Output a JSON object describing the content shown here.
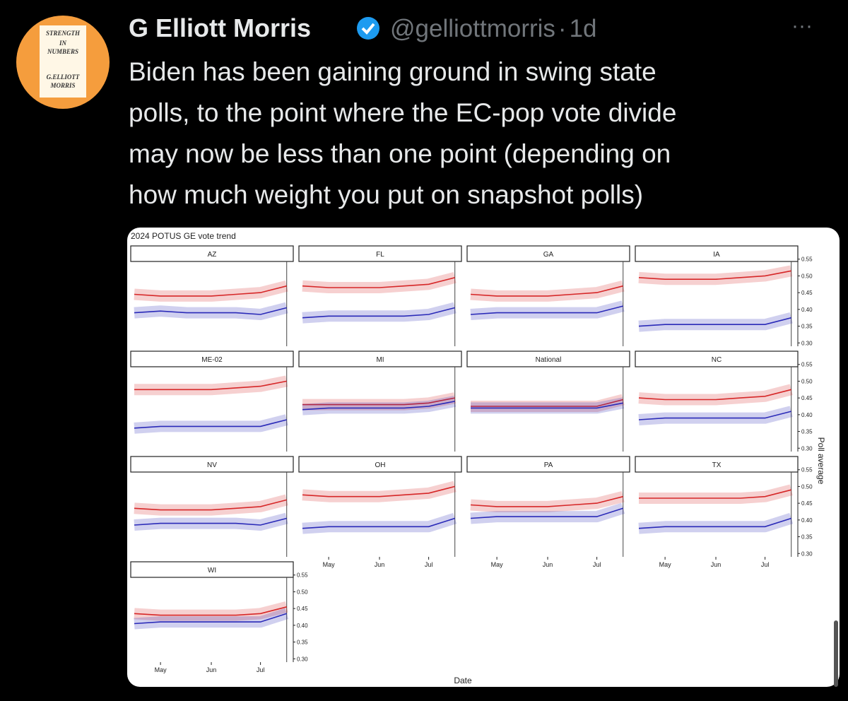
{
  "tweet": {
    "name": "G Elliott Morris",
    "handle": "@gelliottmorris",
    "separator": "·",
    "time": "1d",
    "more": "···",
    "avatar": [
      "STRENGTH",
      "IN",
      "NUMBERS",
      "G.ELLIOTT",
      "MORRIS"
    ],
    "text": [
      "Biden has been gaining ground in swing state",
      "polls, to the point where the EC-pop vote divide",
      "may now be less than one point (depending on",
      "how much weight you put on snapshot polls)"
    ]
  },
  "chart_data": {
    "type": "line",
    "title": "2024 POTUS GE vote trend",
    "xlabel": "Date",
    "ylabel": "Poll average",
    "grid": false,
    "x": [
      106,
      122,
      138,
      153,
      168,
      183,
      199
    ],
    "xlim": [
      106,
      203
    ],
    "xticks": [
      {
        "value": 122,
        "label": "May"
      },
      {
        "value": 153,
        "label": "Jun"
      },
      {
        "value": 183,
        "label": "Jul"
      }
    ],
    "ylim": [
      0.29,
      0.56
    ],
    "yticks": [
      {
        "value": 0.3,
        "label": "0.30"
      },
      0.35,
      {
        "value": 0.4,
        "label": "0.40"
      },
      0.45,
      {
        "value": 0.5,
        "label": "0.50"
      },
      0.55
    ],
    "panels": [
      {
        "name": "AZ",
        "series": [
          {
            "color": "#d62728",
            "values": [
              0.445,
              0.44,
              0.44,
              0.44,
              0.445,
              0.45,
              0.47
            ]
          },
          {
            "color": "#2a2ab8",
            "values": [
              0.39,
              0.395,
              0.39,
              0.39,
              0.39,
              0.385,
              0.405
            ]
          }
        ]
      },
      {
        "name": "FL",
        "series": [
          {
            "color": "#d62728",
            "values": [
              0.47,
              0.465,
              0.465,
              0.465,
              0.47,
              0.475,
              0.495
            ]
          },
          {
            "color": "#2a2ab8",
            "values": [
              0.375,
              0.38,
              0.38,
              0.38,
              0.38,
              0.385,
              0.405
            ]
          }
        ]
      },
      {
        "name": "GA",
        "series": [
          {
            "color": "#d62728",
            "values": [
              0.445,
              0.44,
              0.44,
              0.44,
              0.445,
              0.45,
              0.47
            ]
          },
          {
            "color": "#2a2ab8",
            "values": [
              0.385,
              0.39,
              0.39,
              0.39,
              0.39,
              0.39,
              0.41
            ]
          }
        ]
      },
      {
        "name": "IA",
        "series": [
          {
            "color": "#d62728",
            "values": [
              0.495,
              0.49,
              0.49,
              0.49,
              0.495,
              0.5,
              0.515
            ]
          },
          {
            "color": "#2a2ab8",
            "values": [
              0.35,
              0.355,
              0.355,
              0.355,
              0.355,
              0.355,
              0.375
            ]
          }
        ]
      },
      {
        "name": "ME-02",
        "series": [
          {
            "color": "#d62728",
            "values": [
              0.475,
              0.475,
              0.475,
              0.475,
              0.48,
              0.485,
              0.5
            ]
          },
          {
            "color": "#2a2ab8",
            "values": [
              0.36,
              0.365,
              0.365,
              0.365,
              0.365,
              0.365,
              0.385
            ]
          }
        ]
      },
      {
        "name": "MI",
        "series": [
          {
            "color": "#d62728",
            "values": [
              0.43,
              0.43,
              0.43,
              0.43,
              0.43,
              0.435,
              0.45
            ]
          },
          {
            "color": "#2a2ab8",
            "values": [
              0.415,
              0.42,
              0.42,
              0.42,
              0.42,
              0.425,
              0.44
            ]
          }
        ]
      },
      {
        "name": "National",
        "series": [
          {
            "color": "#d62728",
            "values": [
              0.425,
              0.425,
              0.425,
              0.425,
              0.425,
              0.425,
              0.445
            ]
          },
          {
            "color": "#2a2ab8",
            "values": [
              0.42,
              0.42,
              0.42,
              0.42,
              0.42,
              0.42,
              0.435
            ]
          }
        ]
      },
      {
        "name": "NC",
        "series": [
          {
            "color": "#d62728",
            "values": [
              0.45,
              0.445,
              0.445,
              0.445,
              0.45,
              0.455,
              0.475
            ]
          },
          {
            "color": "#2a2ab8",
            "values": [
              0.385,
              0.39,
              0.39,
              0.39,
              0.39,
              0.39,
              0.41
            ]
          }
        ]
      },
      {
        "name": "NV",
        "series": [
          {
            "color": "#d62728",
            "values": [
              0.435,
              0.43,
              0.43,
              0.43,
              0.435,
              0.44,
              0.46
            ]
          },
          {
            "color": "#2a2ab8",
            "values": [
              0.385,
              0.39,
              0.39,
              0.39,
              0.39,
              0.385,
              0.405
            ]
          }
        ]
      },
      {
        "name": "OH",
        "series": [
          {
            "color": "#d62728",
            "values": [
              0.475,
              0.47,
              0.47,
              0.47,
              0.475,
              0.48,
              0.5
            ]
          },
          {
            "color": "#2a2ab8",
            "values": [
              0.375,
              0.38,
              0.38,
              0.38,
              0.38,
              0.38,
              0.405
            ]
          }
        ]
      },
      {
        "name": "PA",
        "series": [
          {
            "color": "#d62728",
            "values": [
              0.445,
              0.44,
              0.44,
              0.44,
              0.445,
              0.45,
              0.47
            ]
          },
          {
            "color": "#2a2ab8",
            "values": [
              0.405,
              0.41,
              0.41,
              0.41,
              0.41,
              0.41,
              0.435
            ]
          }
        ]
      },
      {
        "name": "TX",
        "series": [
          {
            "color": "#d62728",
            "values": [
              0.465,
              0.465,
              0.465,
              0.465,
              0.465,
              0.47,
              0.49
            ]
          },
          {
            "color": "#2a2ab8",
            "values": [
              0.375,
              0.38,
              0.38,
              0.38,
              0.38,
              0.38,
              0.405
            ]
          }
        ]
      },
      {
        "name": "WI",
        "series": [
          {
            "color": "#d62728",
            "values": [
              0.435,
              0.43,
              0.43,
              0.43,
              0.43,
              0.435,
              0.455
            ]
          },
          {
            "color": "#2a2ab8",
            "values": [
              0.405,
              0.41,
              0.41,
              0.41,
              0.41,
              0.41,
              0.435
            ]
          }
        ]
      }
    ]
  }
}
